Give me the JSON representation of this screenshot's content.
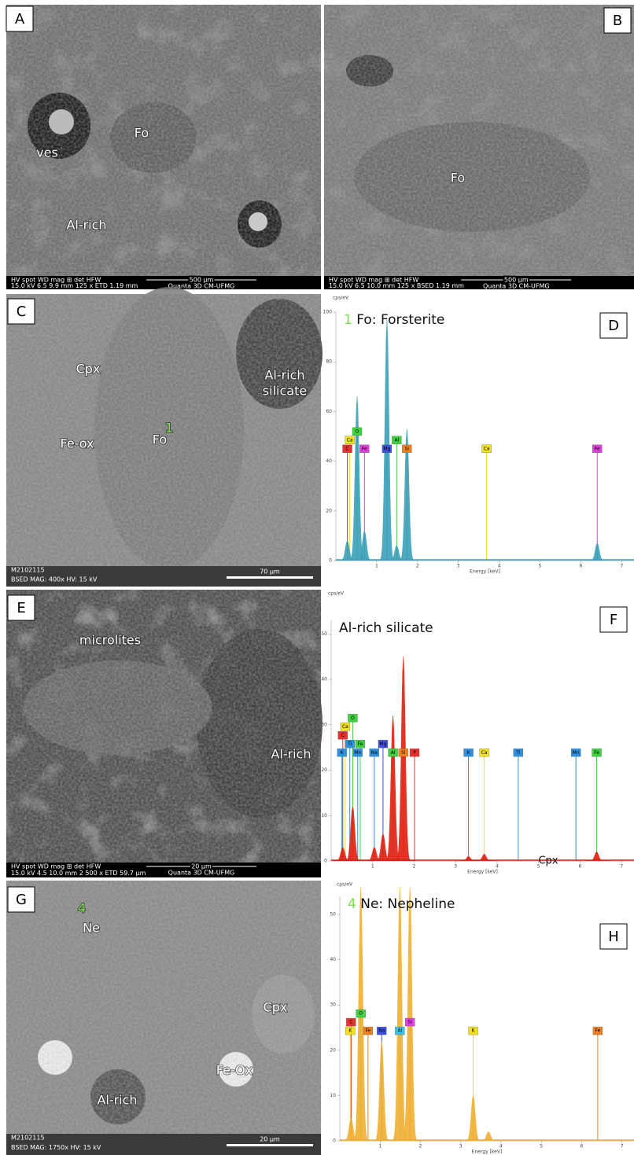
{
  "images": [
    {
      "letter": "A",
      "labels": [
        {
          "text": "ves"
        },
        {
          "text": "Fo"
        },
        {
          "text": "Al-rich"
        }
      ],
      "footer": [
        "HV   spot   WD   mag ⊞   det   HFW",
        "15.0 kV  6.5  9.9 mm  125 x  ETD  1.19 mm"
      ],
      "scale": "500 µm",
      "lab": "Quanta 3D CM-UFMG"
    },
    {
      "letter": "B",
      "labels": [
        {
          "text": "Fo"
        }
      ],
      "footer": [
        "HV   spot   WD   mag ⊞   det   HFW",
        "15.0 kV  6.5  10.0 mm  125 x  BSED  1.19 mm"
      ],
      "scale": "500 µm",
      "lab": "Quanta 3D CM-UFMG"
    },
    {
      "letter": "C",
      "labels": [
        {
          "text": "Cpx"
        },
        {
          "text": "Fe-ox"
        },
        {
          "text": "Fo"
        },
        {
          "text": "1",
          "color": "#7ce04c"
        },
        {
          "text": "Al-rich"
        },
        {
          "text": "silicate"
        }
      ],
      "footer": [
        "M2102115",
        "BSED   MAG: 400x   HV: 15 kV"
      ],
      "scale": "70 µm"
    },
    {
      "letter": "E",
      "labels": [
        {
          "text": "microlites"
        },
        {
          "text": "Al-rich"
        }
      ],
      "footer": [
        "HV   spot   WD   mag ⊞   det   HFW",
        "15.0 kV  4.5  10.0 mm  2 500 x  ETD  59.7 µm"
      ],
      "scale": "20 µm",
      "lab": "Quanta 3D CM-UFMG"
    },
    {
      "letter": "G",
      "labels": [
        {
          "text": "4",
          "color": "#7ce04c"
        },
        {
          "text": "Ne"
        },
        {
          "text": "Cpx"
        },
        {
          "text": "Fe-Ox"
        },
        {
          "text": "Al-rich"
        }
      ],
      "footer": [
        "M2102115",
        "BSED   MAG: 1750x   HV: 15 kV"
      ],
      "scale": "20 µm"
    }
  ],
  "spectra": [
    {
      "letter": "D",
      "number": "1",
      "title": "Fo: Forsterite",
      "y_unit": "cps/eV",
      "x_label": "Energy [keV]",
      "fill": "#3aa0b8",
      "xlim": [
        0,
        7.3
      ],
      "xticks": [
        1,
        2,
        3,
        4,
        5,
        6,
        7
      ],
      "ylim": [
        0,
        100
      ],
      "yticks": [
        0,
        20,
        40,
        60,
        80,
        100
      ],
      "peaks": [
        {
          "energy": 0.28,
          "height": 8
        },
        {
          "energy": 0.52,
          "height": 66
        },
        {
          "energy": 0.7,
          "height": 12
        },
        {
          "energy": 1.25,
          "height": 97
        },
        {
          "energy": 1.49,
          "height": 6
        },
        {
          "energy": 1.74,
          "height": 53
        },
        {
          "energy": 6.4,
          "height": 7
        }
      ],
      "tags": [
        {
          "element": "C",
          "energy": 0.28,
          "color": "#e83030"
        },
        {
          "element": "Ca",
          "energy": 0.34,
          "color": "#f0e020"
        },
        {
          "element": "O",
          "energy": 0.52,
          "color": "#40d040"
        },
        {
          "element": "Fe",
          "energy": 0.7,
          "color": "#e040e0"
        },
        {
          "element": "Mg",
          "energy": 1.25,
          "color": "#4050e0"
        },
        {
          "element": "Al",
          "energy": 1.49,
          "color": "#40d040"
        },
        {
          "element": "Si",
          "energy": 1.74,
          "color": "#f08020"
        },
        {
          "element": "Ca",
          "energy": 3.69,
          "color": "#f0e020"
        },
        {
          "element": "Fe",
          "energy": 6.4,
          "color": "#e040e0"
        }
      ]
    },
    {
      "letter": "F",
      "title": "Al-rich silicate",
      "y_unit": "cps/eV",
      "x_label": "Energy [keV]",
      "fill": "#e02010",
      "note": "Cpx",
      "xlim": [
        0,
        7.3
      ],
      "xticks": [
        1,
        2,
        3,
        4,
        5,
        6,
        7
      ],
      "ylim": [
        0,
        53
      ],
      "yticks": [
        0,
        10,
        20,
        30,
        40,
        50
      ],
      "peaks": [
        {
          "energy": 0.28,
          "height": 3
        },
        {
          "energy": 0.52,
          "height": 12
        },
        {
          "energy": 1.04,
          "height": 3
        },
        {
          "energy": 1.25,
          "height": 6
        },
        {
          "energy": 1.49,
          "height": 32
        },
        {
          "energy": 1.74,
          "height": 45
        },
        {
          "energy": 3.31,
          "height": 1
        },
        {
          "energy": 3.69,
          "height": 1.5
        },
        {
          "energy": 6.4,
          "height": 2
        }
      ],
      "tags": [
        {
          "element": "K",
          "energy": 0.26,
          "color": "#3090e0"
        },
        {
          "element": "Ti",
          "energy": 0.45,
          "color": "#3090e0"
        },
        {
          "element": "Mn",
          "energy": 0.64,
          "color": "#3090e0"
        },
        {
          "element": "C",
          "energy": 0.28,
          "color": "#e83030"
        },
        {
          "element": "Fe",
          "energy": 0.7,
          "color": "#40d040"
        },
        {
          "element": "Na",
          "energy": 1.04,
          "color": "#3090e0"
        },
        {
          "element": "Al",
          "energy": 1.49,
          "color": "#40d040"
        },
        {
          "element": "Ca",
          "energy": 0.34,
          "color": "#f0e020"
        },
        {
          "element": "O",
          "energy": 0.52,
          "color": "#40d040"
        },
        {
          "element": "Mg",
          "energy": 1.25,
          "color": "#4050e0"
        },
        {
          "element": "Si",
          "energy": 1.74,
          "color": "#f08020"
        },
        {
          "element": "P",
          "energy": 2.01,
          "color": "#e83030"
        },
        {
          "element": "K",
          "energy": 3.31,
          "color": "#3090e0"
        },
        {
          "element": "Ca",
          "energy": 3.69,
          "color": "#f0e020"
        },
        {
          "element": "Ti",
          "energy": 4.51,
          "color": "#3090e0"
        },
        {
          "element": "Mn",
          "energy": 5.9,
          "color": "#3090e0"
        },
        {
          "element": "Fe",
          "energy": 6.4,
          "color": "#40d040"
        }
      ]
    },
    {
      "letter": "H",
      "number": "4",
      "title": "Ne: Nepheline",
      "y_unit": "cps/eV",
      "x_label": "Energy [keV]",
      "fill": "#f0b030",
      "xlim": [
        0,
        7.3
      ],
      "xticks": [
        1,
        2,
        3,
        4,
        5,
        6,
        7
      ],
      "ylim": [
        0,
        54
      ],
      "yticks": [
        0,
        10,
        20,
        30,
        40,
        50
      ],
      "peaks": [
        {
          "energy": 0.28,
          "height": 5
        },
        {
          "energy": 0.52,
          "height": 56
        },
        {
          "energy": 1.04,
          "height": 22
        },
        {
          "energy": 1.49,
          "height": 56
        },
        {
          "energy": 1.74,
          "height": 56
        },
        {
          "energy": 3.31,
          "height": 10
        },
        {
          "energy": 3.69,
          "height": 2
        }
      ],
      "tags": [
        {
          "element": "K",
          "energy": 0.26,
          "color": "#f0e020"
        },
        {
          "element": "Fe",
          "energy": 0.7,
          "color": "#f08020"
        },
        {
          "element": "C",
          "energy": 0.28,
          "color": "#e83030"
        },
        {
          "element": "O",
          "energy": 0.52,
          "color": "#40d040"
        },
        {
          "element": "Na",
          "energy": 1.04,
          "color": "#4050e0"
        },
        {
          "element": "Al",
          "energy": 1.49,
          "color": "#40c0e0"
        },
        {
          "element": "Si",
          "energy": 1.74,
          "color": "#e040e0"
        },
        {
          "element": "K",
          "energy": 3.31,
          "color": "#f0e020"
        },
        {
          "element": "Fe",
          "energy": 6.4,
          "color": "#f08020"
        }
      ]
    }
  ]
}
